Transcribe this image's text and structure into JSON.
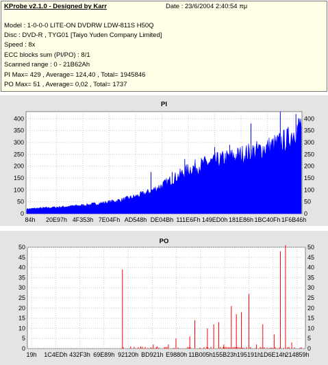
{
  "header": {
    "title": "KProbe v2.1.0 - Designed by Karr",
    "date": "Date : 23/6/2004 2:40:54 πμ",
    "model": "Model : 1-0-0-0 LITE-ON DVDRW LDW-811S   H50Q",
    "disc": "Disc : DVD-R , TYG01 [Taiyo Yuden Company Limited]",
    "speed": "Speed : 8x",
    "ecc": "ECC blocks sum (PI/PO) : 8/1",
    "range": "Scanned range : 0 - 21B62Ah",
    "pi_stats": "PI Max= 429 , Average= 124,40 , Total= 1945846",
    "po_stats": "PO Max= 51 , Average= 0,02 , Total= 1737"
  },
  "colors": {
    "pi": "#0000ff",
    "po": "#ff0000",
    "panel_bg": "#e4e4e4",
    "plot_bg": "#ffffff",
    "info_bg": "#ffffe8"
  },
  "chart_data": [
    {
      "type": "area",
      "title": "PI",
      "color": "#0000ff",
      "ylim": [
        0,
        430
      ],
      "yticks": [
        0,
        50,
        100,
        150,
        200,
        250,
        300,
        350,
        400
      ],
      "xlim": [
        0,
        2208378
      ],
      "xtick_labels": [
        "84h",
        "20E97h",
        "4F353h",
        "7E04Fh",
        "AD548h",
        "DE04Bh",
        "111E6Fh",
        "149ED0h",
        "181E86h",
        "1BC40Fh",
        "1F6B46h"
      ],
      "grid": true,
      "x": [
        0,
        110000,
        220000,
        330000,
        440000,
        550000,
        660000,
        770000,
        880000,
        990000,
        1100000,
        1210000,
        1320000,
        1430000,
        1540000,
        1650000,
        1760000,
        1870000,
        1980000,
        2090000,
        2150000,
        2208378
      ],
      "baseline": [
        20,
        24,
        27,
        31,
        36,
        42,
        50,
        60,
        75,
        95,
        125,
        160,
        195,
        215,
        230,
        245,
        260,
        275,
        295,
        320,
        355,
        390
      ],
      "spikes": [
        {
          "x": 1000000,
          "y": 175
        },
        {
          "x": 1170000,
          "y": 175
        },
        {
          "x": 1270000,
          "y": 230
        },
        {
          "x": 1510000,
          "y": 280
        },
        {
          "x": 1630000,
          "y": 290
        },
        {
          "x": 1800000,
          "y": 380
        },
        {
          "x": 2035000,
          "y": 430
        },
        {
          "x": 2160000,
          "y": 420
        }
      ]
    },
    {
      "type": "bar",
      "title": "PO",
      "color": "#ff0000",
      "ylim": [
        0,
        50
      ],
      "yticks": [
        0,
        5,
        10,
        15,
        20,
        25,
        30,
        35,
        40,
        45,
        50
      ],
      "xlim": [
        0,
        2208378
      ],
      "xtick_labels": [
        "19h",
        "1C4EDh",
        "432F3h",
        "69E89h",
        "92120h",
        "BD921h",
        "E9880h",
        "11B005h",
        "155B23h",
        "195191h",
        "1D6E14h",
        "214859h"
      ],
      "grid": true,
      "x": [
        755000,
        820000,
        900000,
        1000000,
        1030000,
        1120000,
        1180000,
        1290000,
        1330000,
        1430000,
        1480000,
        1520000,
        1560000,
        1620000,
        1660000,
        1700000,
        1760000,
        1820000,
        1870000,
        1960000,
        2010000,
        2050000,
        2100000
      ],
      "y": [
        39,
        1,
        1,
        2,
        1,
        2,
        5,
        6,
        14,
        10,
        12,
        13,
        2,
        21,
        17,
        18,
        27,
        2,
        12,
        7,
        48,
        51,
        3
      ]
    }
  ]
}
